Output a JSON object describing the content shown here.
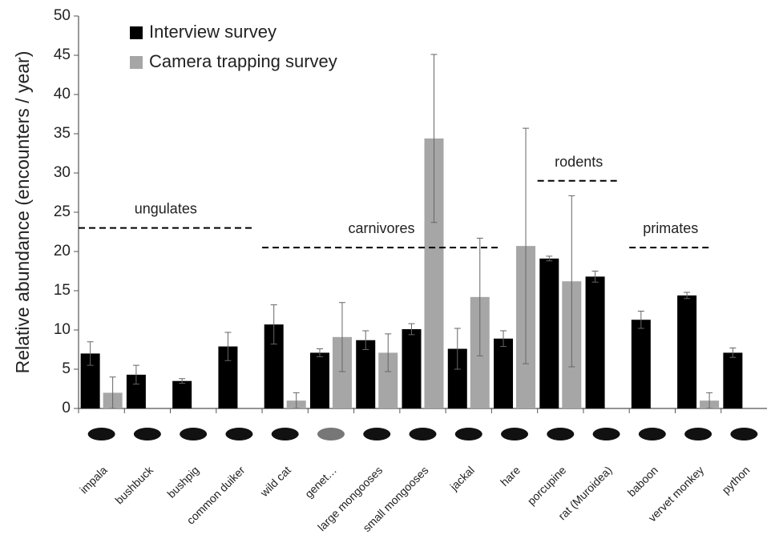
{
  "chart_data": {
    "type": "bar",
    "y_label": "Relative abundance (encounters / year)",
    "categories": [
      "impala",
      "bushbuck",
      "bushpig",
      "common duiker",
      "wild cat",
      "genet…",
      "large mongooses",
      "small mongooses",
      "jackal",
      "hare",
      "porcupine",
      "rat (Muroidea)",
      "baboon",
      "vervet monkey",
      "python"
    ],
    "series": [
      {
        "name": "Interview survey",
        "color": "#000000",
        "values": [
          7,
          4.3,
          3.5,
          7.9,
          10.7,
          7.1,
          8.7,
          10.1,
          7.6,
          8.9,
          19.1,
          16.8,
          11.3,
          14.4,
          7.1
        ],
        "errors": [
          1.5,
          1.2,
          0.3,
          1.8,
          2.5,
          0.5,
          1.2,
          0.7,
          2.6,
          1.0,
          0.3,
          0.7,
          1.1,
          0.4,
          0.6
        ]
      },
      {
        "name": "Camera trapping survey",
        "color": "#a6a6a6",
        "values": [
          2,
          null,
          null,
          null,
          1,
          9.1,
          7.1,
          34.4,
          14.2,
          20.7,
          16.2,
          null,
          null,
          1,
          null
        ],
        "errors": [
          2,
          null,
          null,
          null,
          1,
          4.4,
          2.4,
          10.7,
          7.5,
          15,
          10.9,
          null,
          null,
          1,
          null
        ]
      }
    ],
    "annotations": [
      {
        "text": "ungulates",
        "y": 23
      },
      {
        "text": "carnivores",
        "y": 20.5
      },
      {
        "text": "rodents",
        "y": 29
      },
      {
        "text": "primates",
        "y": 20.5
      }
    ],
    "ylim": [
      0,
      50
    ],
    "yticks": [
      0,
      5,
      10,
      15,
      20,
      25,
      30,
      35,
      40,
      45,
      50
    ],
    "grid": false
  }
}
